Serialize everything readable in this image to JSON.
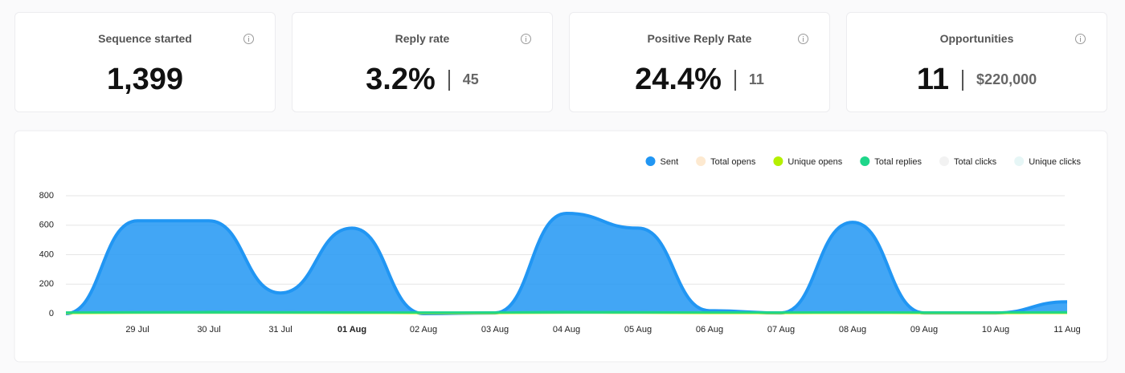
{
  "cards": [
    {
      "title": "Sequence started",
      "value": "1,399"
    },
    {
      "title": "Reply rate",
      "value": "3.2%",
      "secondary": "45"
    },
    {
      "title": "Positive Reply Rate",
      "value": "24.4%",
      "secondary": "11"
    },
    {
      "title": "Opportunities",
      "value": "11",
      "secondary": "$220,000"
    }
  ],
  "chart_data": {
    "type": "area",
    "categories": [
      null,
      "29 Jul",
      "30 Jul",
      "31 Jul",
      "01 Aug",
      "02 Aug",
      "03 Aug",
      "04 Aug",
      "05 Aug",
      "06 Aug",
      "07 Aug",
      "08 Aug",
      "09 Aug",
      "10 Aug",
      "11 Aug"
    ],
    "highlighted_index": 4,
    "series": [
      {
        "name": "Sent",
        "color": "#2196f3",
        "values": [
          0,
          630,
          630,
          140,
          580,
          0,
          5,
          680,
          580,
          20,
          5,
          620,
          5,
          5,
          80
        ]
      },
      {
        "name": "Total opens",
        "color": "#fde9d0",
        "hidden": true
      },
      {
        "name": "Unique opens",
        "color": "#b5f000",
        "values": [
          2,
          4,
          5,
          4,
          3,
          2,
          2,
          5,
          4,
          2,
          2,
          3,
          2,
          2,
          3
        ]
      },
      {
        "name": "Total replies",
        "color": "#1ed68a",
        "values": [
          10,
          12,
          14,
          12,
          11,
          10,
          10,
          14,
          12,
          10,
          10,
          12,
          10,
          10,
          12
        ]
      },
      {
        "name": "Total clicks",
        "color": "#f2f2f2",
        "hidden": true
      },
      {
        "name": "Unique clicks",
        "color": "#e6f6f6",
        "hidden": true
      }
    ],
    "ylim": [
      0,
      800
    ],
    "yticks": [
      0,
      200,
      400,
      600,
      800
    ],
    "grid": true,
    "legend": "top-right"
  }
}
